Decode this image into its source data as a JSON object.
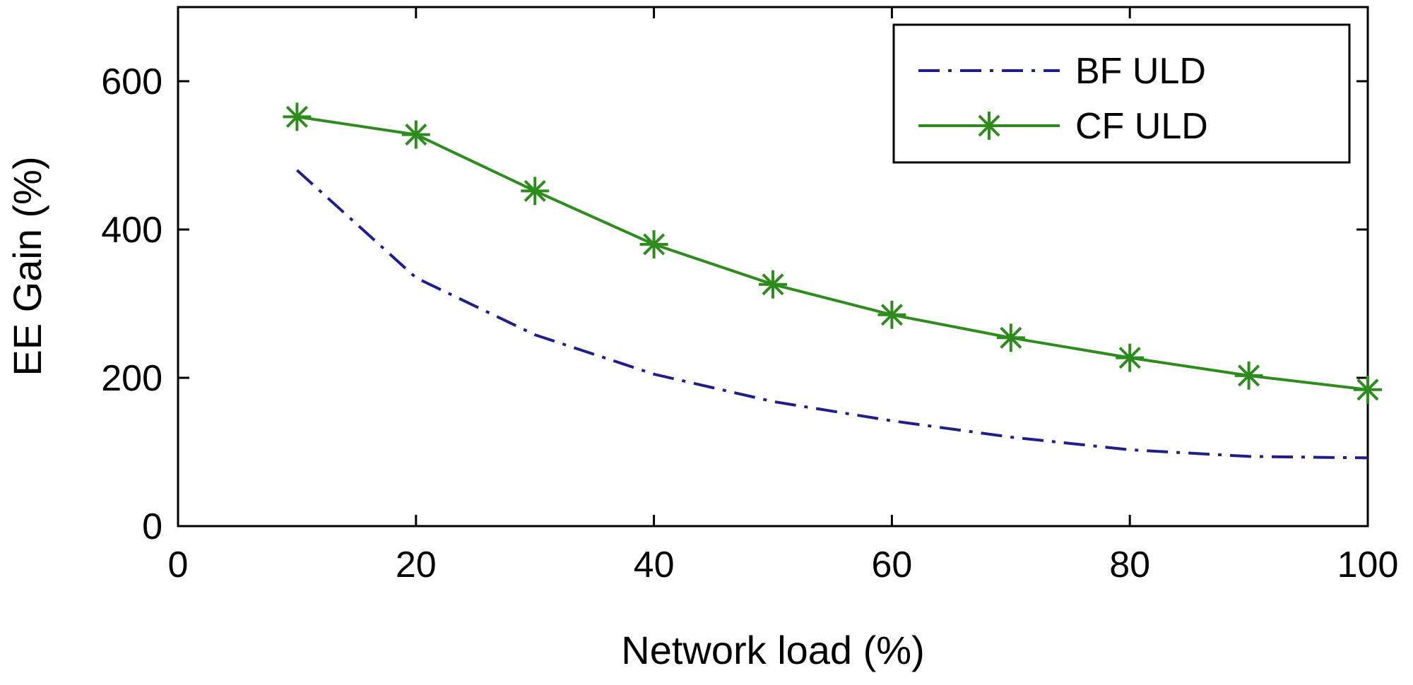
{
  "chart_data": {
    "type": "line",
    "title": "",
    "xlabel": "Network load (%)",
    "ylabel": "EE Gain (%)",
    "xlim": [
      0,
      100
    ],
    "ylim": [
      0,
      700
    ],
    "xticks": [
      0,
      20,
      40,
      60,
      80,
      100
    ],
    "yticks": [
      0,
      200,
      400,
      600
    ],
    "grid": false,
    "legend_position": "top-right",
    "series": [
      {
        "name": "BF ULD",
        "color": "#1f1f8a",
        "line_style": "dash-dot",
        "marker": "none",
        "x": [
          10,
          20,
          30,
          40,
          50,
          60,
          70,
          80,
          90,
          100
        ],
        "values": [
          480,
          335,
          258,
          205,
          168,
          142,
          120,
          103,
          94,
          92
        ]
      },
      {
        "name": "CF ULD",
        "color": "#2e8b1e",
        "line_style": "solid",
        "marker": "asterisk",
        "x": [
          10,
          20,
          30,
          40,
          50,
          60,
          70,
          80,
          90,
          100
        ],
        "values": [
          552,
          528,
          452,
          380,
          326,
          285,
          254,
          227,
          203,
          184
        ]
      }
    ]
  }
}
